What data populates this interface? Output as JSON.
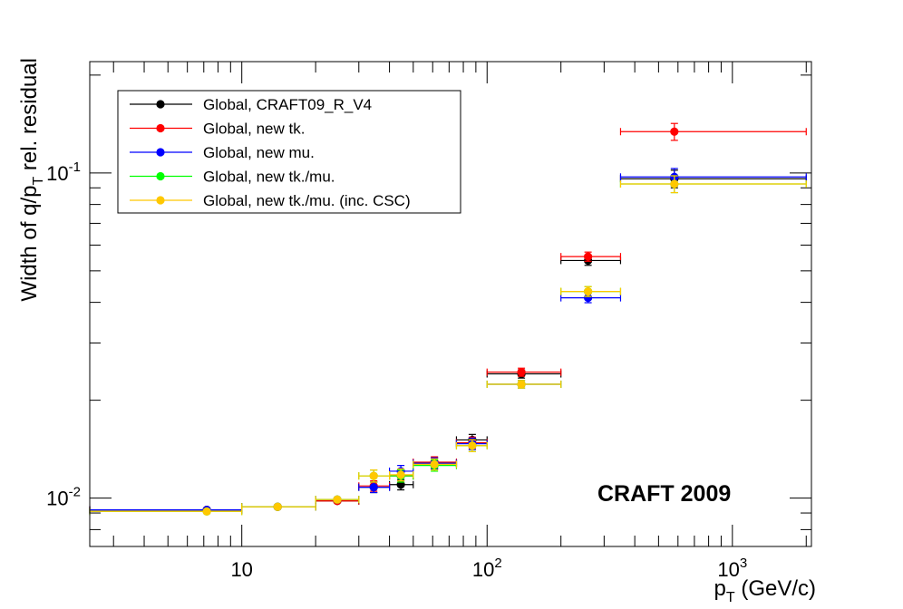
{
  "chart_data": {
    "type": "scatter",
    "title": "",
    "xlabel": "p_T (GeV/c)",
    "xlabel_parts": {
      "main": "p",
      "sub": "T",
      "rest": " (GeV/c)"
    },
    "ylabel": "Width of q/p_T rel. residual",
    "ylabel_parts": {
      "pre": "Width of q/p",
      "sub": "T",
      "post": " rel. residual"
    },
    "x_scale": "log",
    "y_scale": "log",
    "xlim": [
      2.4,
      2100
    ],
    "ylim": [
      0.0071,
      0.22
    ],
    "grid": false,
    "legend_position": "top-left",
    "x_tick_labels": [
      {
        "value": 10,
        "base": "10",
        "exp": ""
      },
      {
        "value": 100,
        "base": "10",
        "exp": "2"
      },
      {
        "value": 1000,
        "base": "10",
        "exp": "3"
      }
    ],
    "y_tick_labels": [
      {
        "value": 0.01,
        "base": "10",
        "exp": "-2"
      },
      {
        "value": 0.1,
        "base": "10",
        "exp": "-1"
      }
    ],
    "annotation": "CRAFT 2009",
    "series": [
      {
        "name": "Global, CRAFT09_R_V4",
        "color": "#000000",
        "points": [
          {
            "x": 7.2,
            "xlo": 2.4,
            "xhi": 10,
            "y": 0.0092,
            "err": 0.0001
          },
          {
            "x": 14,
            "xlo": 10,
            "xhi": 20,
            "y": 0.0094,
            "err": 0.0001
          },
          {
            "x": 24.5,
            "xlo": 20,
            "xhi": 30,
            "y": 0.0098,
            "err": 0.0002
          },
          {
            "x": 34.5,
            "xlo": 30,
            "xhi": 40,
            "y": 0.0108,
            "err": 0.0004
          },
          {
            "x": 44.5,
            "xlo": 40,
            "xhi": 50,
            "y": 0.011,
            "err": 0.0004
          },
          {
            "x": 61,
            "xlo": 50,
            "xhi": 75,
            "y": 0.0128,
            "err": 0.0005
          },
          {
            "x": 87,
            "xlo": 75,
            "xhi": 100,
            "y": 0.0151,
            "err": 0.0006
          },
          {
            "x": 138,
            "xlo": 100,
            "xhi": 200,
            "y": 0.0241,
            "err": 0.0007
          },
          {
            "x": 258,
            "xlo": 200,
            "xhi": 350,
            "y": 0.0538,
            "err": 0.0018
          },
          {
            "x": 580,
            "xlo": 350,
            "xhi": 2000,
            "y": 0.096,
            "err": 0.006
          }
        ]
      },
      {
        "name": "Global, new tk.",
        "color": "#ff0000",
        "points": [
          {
            "x": 7.2,
            "xlo": 2.4,
            "xhi": 10,
            "y": 0.0092,
            "err": 0.0001
          },
          {
            "x": 14,
            "xlo": 10,
            "xhi": 20,
            "y": 0.0094,
            "err": 0.0001
          },
          {
            "x": 24.5,
            "xlo": 20,
            "xhi": 30,
            "y": 0.0098,
            "err": 0.0002
          },
          {
            "x": 34.5,
            "xlo": 30,
            "xhi": 40,
            "y": 0.0109,
            "err": 0.0004
          },
          {
            "x": 44.5,
            "xlo": 40,
            "xhi": 50,
            "y": 0.0117,
            "err": 0.0004
          },
          {
            "x": 61,
            "xlo": 50,
            "xhi": 75,
            "y": 0.0129,
            "err": 0.0005
          },
          {
            "x": 87,
            "xlo": 75,
            "xhi": 100,
            "y": 0.0148,
            "err": 0.0006
          },
          {
            "x": 138,
            "xlo": 100,
            "xhi": 200,
            "y": 0.0244,
            "err": 0.0007
          },
          {
            "x": 258,
            "xlo": 200,
            "xhi": 350,
            "y": 0.0553,
            "err": 0.0018
          },
          {
            "x": 580,
            "xlo": 350,
            "xhi": 2000,
            "y": 0.134,
            "err": 0.008
          }
        ]
      },
      {
        "name": "Global, new mu.",
        "color": "#0000ff",
        "points": [
          {
            "x": 7.2,
            "xlo": 2.4,
            "xhi": 10,
            "y": 0.0092,
            "err": 0.0001
          },
          {
            "x": 14,
            "xlo": 10,
            "xhi": 20,
            "y": 0.0094,
            "err": 0.0001
          },
          {
            "x": 24.5,
            "xlo": 20,
            "xhi": 30,
            "y": 0.0099,
            "err": 0.0002
          },
          {
            "x": 34.5,
            "xlo": 30,
            "xhi": 40,
            "y": 0.0108,
            "err": 0.0004
          },
          {
            "x": 44.5,
            "xlo": 40,
            "xhi": 50,
            "y": 0.0121,
            "err": 0.0005
          },
          {
            "x": 61,
            "xlo": 50,
            "xhi": 75,
            "y": 0.0128,
            "err": 0.0005
          },
          {
            "x": 87,
            "xlo": 75,
            "xhi": 100,
            "y": 0.0147,
            "err": 0.0006
          },
          {
            "x": 138,
            "xlo": 100,
            "xhi": 200,
            "y": 0.0224,
            "err": 0.0006
          },
          {
            "x": 258,
            "xlo": 200,
            "xhi": 350,
            "y": 0.0413,
            "err": 0.0014
          },
          {
            "x": 580,
            "xlo": 350,
            "xhi": 2000,
            "y": 0.0972,
            "err": 0.006
          }
        ]
      },
      {
        "name": "Global, new tk./mu.",
        "color": "#00ff00",
        "points": [
          {
            "x": 7.2,
            "xlo": 2.4,
            "xhi": 10,
            "y": 0.0091,
            "err": 0.0001
          },
          {
            "x": 14,
            "xlo": 10,
            "xhi": 20,
            "y": 0.0094,
            "err": 0.0001
          },
          {
            "x": 24.5,
            "xlo": 20,
            "xhi": 30,
            "y": 0.0099,
            "err": 0.0002
          },
          {
            "x": 34.5,
            "xlo": 30,
            "xhi": 40,
            "y": 0.0117,
            "err": 0.0005
          },
          {
            "x": 44.5,
            "xlo": 40,
            "xhi": 50,
            "y": 0.0117,
            "err": 0.0005
          },
          {
            "x": 61,
            "xlo": 50,
            "xhi": 75,
            "y": 0.0126,
            "err": 0.0005
          },
          {
            "x": 87,
            "xlo": 75,
            "xhi": 100,
            "y": 0.0145,
            "err": 0.0006
          },
          {
            "x": 138,
            "xlo": 100,
            "xhi": 200,
            "y": 0.0224,
            "err": 0.0006
          },
          {
            "x": 258,
            "xlo": 200,
            "xhi": 350,
            "y": 0.0432,
            "err": 0.0015
          },
          {
            "x": 580,
            "xlo": 350,
            "xhi": 2000,
            "y": 0.0925,
            "err": 0.0055
          }
        ]
      },
      {
        "name": "Global, new tk./mu. (inc. CSC)",
        "color": "#ffc800",
        "points": [
          {
            "x": 7.2,
            "xlo": 2.4,
            "xhi": 10,
            "y": 0.0091,
            "err": 0.0001
          },
          {
            "x": 14,
            "xlo": 10,
            "xhi": 20,
            "y": 0.0094,
            "err": 0.0001
          },
          {
            "x": 24.5,
            "xlo": 20,
            "xhi": 30,
            "y": 0.0099,
            "err": 0.0002
          },
          {
            "x": 34.5,
            "xlo": 30,
            "xhi": 40,
            "y": 0.0117,
            "err": 0.0005
          },
          {
            "x": 44.5,
            "xlo": 40,
            "xhi": 50,
            "y": 0.0118,
            "err": 0.0005
          },
          {
            "x": 61,
            "xlo": 50,
            "xhi": 75,
            "y": 0.0127,
            "err": 0.0005
          },
          {
            "x": 87,
            "xlo": 75,
            "xhi": 100,
            "y": 0.0145,
            "err": 0.0006
          },
          {
            "x": 138,
            "xlo": 100,
            "xhi": 200,
            "y": 0.0224,
            "err": 0.0006
          },
          {
            "x": 258,
            "xlo": 200,
            "xhi": 350,
            "y": 0.0432,
            "err": 0.0015
          },
          {
            "x": 580,
            "xlo": 350,
            "xhi": 2000,
            "y": 0.0925,
            "err": 0.0055
          }
        ]
      }
    ]
  }
}
